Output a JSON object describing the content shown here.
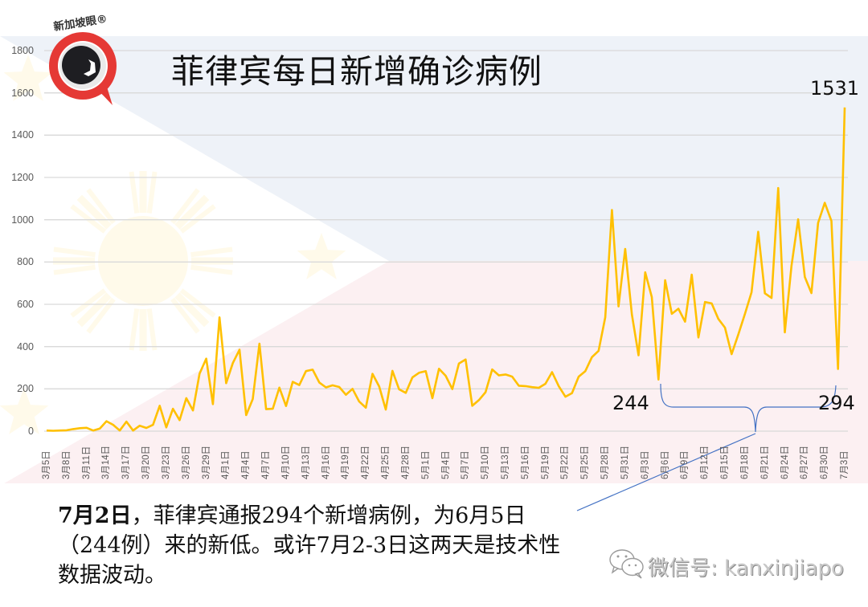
{
  "logo": {
    "text": "新加坡眼®",
    "ring_color": "#e53935",
    "eye_color": "#1e1e22"
  },
  "title": "菲律宾每日新增确诊病例",
  "chart_data": {
    "type": "line",
    "title": "菲律宾每日新增确诊病例",
    "xlabel": "",
    "ylabel": "",
    "ylim": [
      0,
      1800
    ],
    "yticks": [
      0,
      200,
      400,
      600,
      800,
      1000,
      1200,
      1400,
      1600,
      1800
    ],
    "grid": true,
    "legend": "none",
    "x_start": "3月5日",
    "x_end": "7月3日",
    "x_tick_labels": [
      "3月5日",
      "3月8日",
      "3月11日",
      "3月14日",
      "3月17日",
      "3月20日",
      "3月23日",
      "3月26日",
      "3月29日",
      "4月1日",
      "4月4日",
      "4月7日",
      "4月10日",
      "4月13日",
      "4月16日",
      "4月19日",
      "4月22日",
      "4月25日",
      "4月28日",
      "5月1日",
      "5月4日",
      "5月7日",
      "5月10日",
      "5月13日",
      "5月16日",
      "5月19日",
      "5月22日",
      "5月25日",
      "5月28日",
      "5月31日",
      "6月3日",
      "6月6日",
      "6月9日",
      "6月12日",
      "6月15日",
      "6月18日",
      "6月21日",
      "6月24日",
      "6月27日",
      "6月30日",
      "7月3日"
    ],
    "series": [
      {
        "name": "每日新增确诊病例",
        "color": "#ffc000",
        "values": [
          3,
          2,
          3,
          4,
          10,
          14,
          16,
          3,
          12,
          47,
          30,
          3,
          45,
          3,
          26,
          15,
          30,
          120,
          18,
          106,
          52,
          156,
          98,
          272,
          343,
          128,
          538,
          227,
          322,
          385,
          76,
          152,
          414,
          104,
          106,
          206,
          119,
          233,
          218,
          284,
          291,
          230,
          207,
          217,
          209,
          172,
          200,
          140,
          111,
          271,
          211,
          102,
          285,
          198,
          181,
          254,
          276,
          284,
          156,
          295,
          262,
          199,
          320,
          339,
          120,
          147,
          184,
          292,
          264,
          268,
          258,
          215,
          213,
          208,
          205,
          224,
          279,
          213,
          163,
          180,
          258,
          284,
          350,
          380,
          539,
          1046,
          590,
          862,
          552,
          359,
          751,
          634,
          244,
          714,
          555,
          579,
          518,
          740,
          443,
          611,
          604,
          531,
          490,
          364,
          457,
          555,
          657,
          943,
          652,
          630,
          1150,
          467,
          782,
          1002,
          729,
          653,
          985,
          1080,
          994,
          294,
          1531
        ]
      }
    ],
    "annotations": [
      {
        "label": "1531",
        "date": "7月3日",
        "value": 1531
      },
      {
        "label": "244",
        "date": "6月5日",
        "value": 244
      },
      {
        "label": "294",
        "date": "7月2日",
        "value": 294
      }
    ],
    "brace_color": "#4472c4"
  },
  "annotations": {
    "peak": "1531",
    "low_jun5": "244",
    "low_jul2": "294"
  },
  "caption": {
    "bold_prefix": "7月2日",
    "line1_rest": "，菲律宾通报294个新增病例，为6月5日",
    "line2": "（244例）来的新低。或许7月2-3日这两天是技术性",
    "line3": "数据波动。"
  },
  "watermark": {
    "text": "微信号: kanxinjiapo"
  },
  "colors": {
    "flag_blue": "#eef2f8",
    "flag_red": "#fcf0f2",
    "flag_sun": "#fffaea",
    "grid": "#d9d9d9",
    "axis_text": "#595959"
  }
}
